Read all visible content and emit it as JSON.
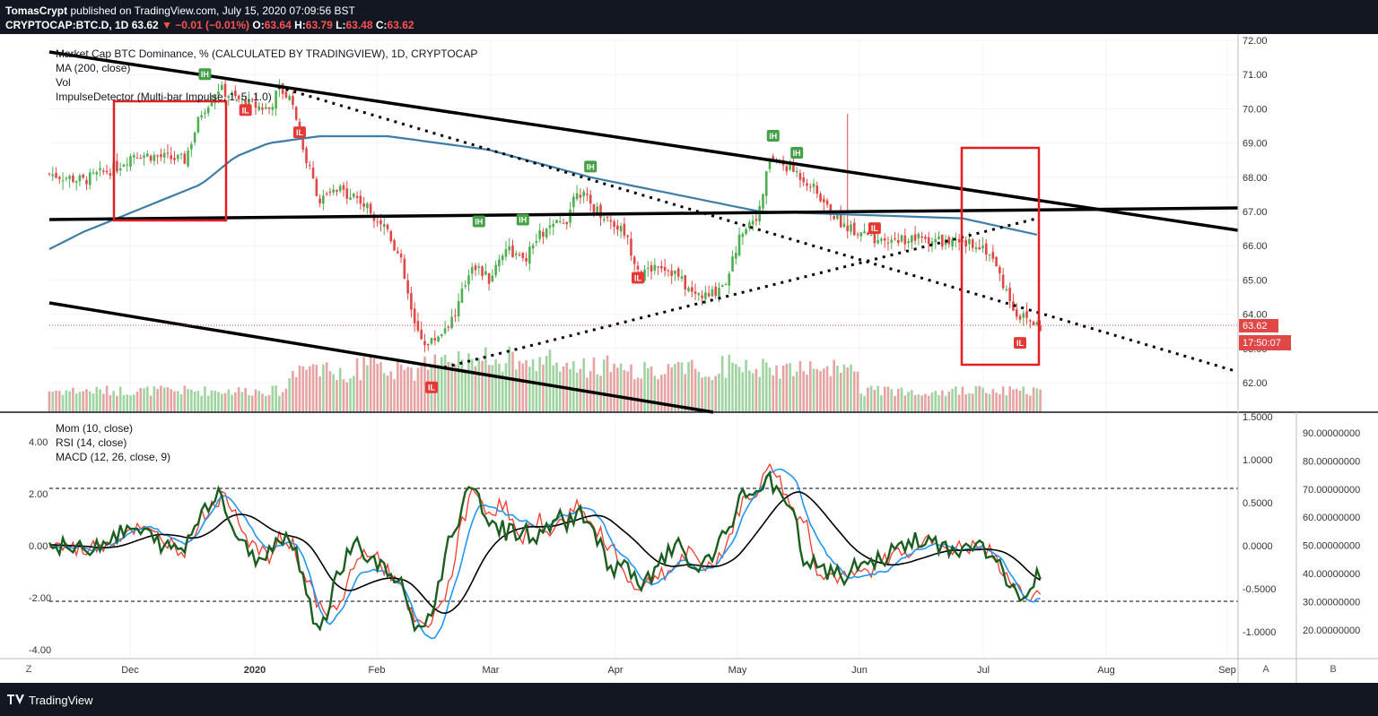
{
  "header": {
    "user": "TomasCrypt",
    "published": "published on TradingView.com, July 15, 2020 07:09:56 BST",
    "symbol": "CRYPTOCAP:BTC.D, 1D",
    "last": "63.62",
    "change": "−0.01 (−0.01%)",
    "o_label": "O:",
    "o": "63.64",
    "h_label": "H:",
    "h": "63.79",
    "l_label": "L:",
    "l": "63.48",
    "c_label": "C:",
    "c": "63.62"
  },
  "legend_top": {
    "title": "Market Cap BTC Dominance, % (CALCULATED BY TRADINGVIEW), 1D, CRYPTOCAP",
    "ma": "MA (200, close)",
    "vol": "Vol",
    "impulse": "ImpulseDetector (Multi-bar Impulse, 1, 5, 1.0)"
  },
  "legend_bottom": {
    "mom": "Mom (10, close)",
    "rsi": "RSI (14, close)",
    "macd": "MACD (12, 26, close, 9)"
  },
  "footer": {
    "brand": "TradingView"
  },
  "buttons": {
    "z": "Z",
    "a": "A",
    "b": "B"
  },
  "price_badge": "63.62",
  "timer_badge": "17:50:07",
  "colors": {
    "up": "#4caf50",
    "down": "#e04848",
    "ma": "#3d7ea6",
    "mom": "#1b5e20",
    "rsi": "#f23b2a",
    "macd": "#2196f3",
    "signal": "#000000",
    "box": "#e02020"
  },
  "chart_data": [
    {
      "type": "candlestick",
      "title": "Market Cap BTC Dominance, % (CALCULATED BY TRADINGVIEW), 1D, CRYPTOCAP",
      "x_ticks": [
        "Dec",
        "2020",
        "Feb",
        "Mar",
        "Apr",
        "May",
        "Jun",
        "Jul",
        "Aug",
        "Sep"
      ],
      "y_ticks": [
        "62.00",
        "63.00",
        "64.00",
        "65.00",
        "66.00",
        "67.00",
        "68.00",
        "69.00",
        "70.00",
        "71.00",
        "72.00"
      ],
      "ylim": [
        61.1,
        72.0
      ],
      "last_price": 63.62,
      "close_path": [
        [
          0,
          68.1
        ],
        [
          10,
          67.9
        ],
        [
          20,
          68.3
        ],
        [
          25,
          68.7
        ],
        [
          32,
          68.6
        ],
        [
          40,
          68.5
        ],
        [
          45,
          69.9
        ],
        [
          50,
          70.6
        ],
        [
          55,
          70.3
        ],
        [
          60,
          70.1
        ],
        [
          65,
          70.0
        ],
        [
          68,
          70.6
        ],
        [
          72,
          70.2
        ],
        [
          75,
          68.8
        ],
        [
          80,
          67.3
        ],
        [
          85,
          67.6
        ],
        [
          90,
          67.5
        ],
        [
          95,
          67.0
        ],
        [
          100,
          66.5
        ],
        [
          104,
          65.5
        ],
        [
          108,
          63.6
        ],
        [
          112,
          63.1
        ],
        [
          116,
          63.5
        ],
        [
          120,
          64.0
        ],
        [
          125,
          65.5
        ],
        [
          130,
          65.0
        ],
        [
          135,
          66.0
        ],
        [
          140,
          65.5
        ],
        [
          145,
          66.3
        ],
        [
          150,
          66.6
        ],
        [
          153,
          66.8
        ],
        [
          156,
          67.7
        ],
        [
          160,
          67.2
        ],
        [
          165,
          66.8
        ],
        [
          170,
          66.4
        ],
        [
          175,
          65.1
        ],
        [
          180,
          65.5
        ],
        [
          185,
          65.2
        ],
        [
          190,
          64.6
        ],
        [
          195,
          64.5
        ],
        [
          200,
          65.0
        ],
        [
          205,
          66.5
        ],
        [
          210,
          67.0
        ],
        [
          213,
          68.6
        ],
        [
          216,
          68.4
        ],
        [
          220,
          68.2
        ],
        [
          225,
          67.8
        ],
        [
          230,
          67.1
        ],
        [
          235,
          66.6
        ],
        [
          240,
          66.4
        ],
        [
          245,
          66.0
        ],
        [
          250,
          66.2
        ],
        [
          255,
          66.2
        ],
        [
          260,
          66.2
        ],
        [
          265,
          66.1
        ],
        [
          270,
          66.0
        ],
        [
          274,
          66.1
        ],
        [
          278,
          65.8
        ],
        [
          282,
          64.9
        ],
        [
          286,
          64.0
        ],
        [
          290,
          63.8
        ],
        [
          293,
          63.62
        ]
      ],
      "ma200_path": [
        [
          0,
          65.9
        ],
        [
          10,
          66.4
        ],
        [
          20,
          66.8
        ],
        [
          35,
          67.4
        ],
        [
          45,
          67.8
        ],
        [
          55,
          68.6
        ],
        [
          65,
          69.0
        ],
        [
          80,
          69.2
        ],
        [
          100,
          69.2
        ],
        [
          130,
          68.8
        ],
        [
          160,
          68.0
        ],
        [
          190,
          67.4
        ],
        [
          210,
          67.0
        ],
        [
          240,
          66.9
        ],
        [
          270,
          66.8
        ],
        [
          293,
          66.3
        ]
      ],
      "impulse_labels": [
        {
          "t": "IH",
          "d": 46,
          "p": 71.0
        },
        {
          "t": "IL",
          "d": 58,
          "p": 69.95
        },
        {
          "t": "IL",
          "d": 74,
          "p": 69.3
        },
        {
          "t": "IH",
          "d": 127,
          "p": 66.7
        },
        {
          "t": "IH",
          "d": 140,
          "p": 66.75
        },
        {
          "t": "IH",
          "d": 160,
          "p": 68.3
        },
        {
          "t": "IL",
          "d": 174,
          "p": 65.05
        },
        {
          "t": "IL",
          "d": 113,
          "p": 61.85
        },
        {
          "t": "IH",
          "d": 214,
          "p": 69.2
        },
        {
          "t": "IH",
          "d": 221,
          "p": 68.7
        },
        {
          "t": "IL",
          "d": 244,
          "p": 66.5
        },
        {
          "t": "IL",
          "d": 287,
          "p": 63.15
        }
      ]
    },
    {
      "type": "line",
      "series": [
        {
          "name": "Mom (10, close)"
        },
        {
          "name": "RSI (14, close)"
        },
        {
          "name": "MACD (12, 26, close, 9)"
        }
      ],
      "y_ticks_left": [
        "4.00",
        "2.00",
        "0.00",
        "-2.00",
        "-4.00"
      ],
      "y_ticks_mid": [
        "1.5000",
        "1.0000",
        "0.5000",
        "0.0000",
        "-0.5000",
        "-1.0000"
      ],
      "y_ticks_right": [
        "90.00000000",
        "80.00000000",
        "70.00000000",
        "60.00000000",
        "50.00000000",
        "40.00000000",
        "30.00000000",
        "20.00000000"
      ],
      "rsi_bands": [
        70,
        30
      ]
    }
  ]
}
